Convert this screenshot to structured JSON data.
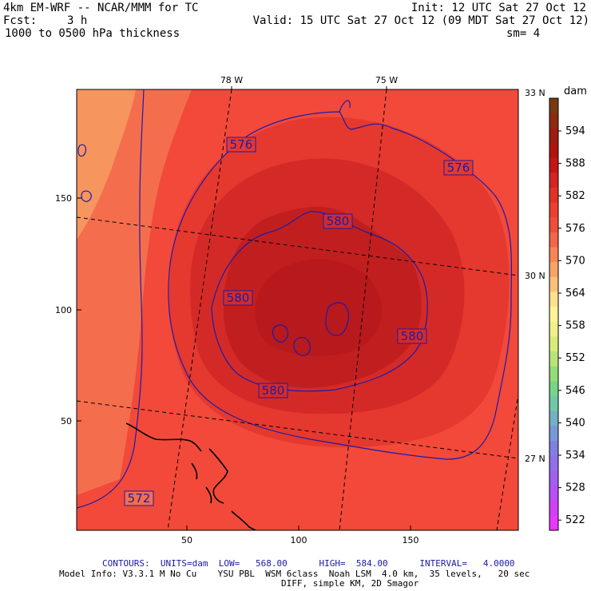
{
  "header": {
    "model": "4km EM-WRF -- NCAR/MMM for TC",
    "init": "Init: 12 UTC Sat 27 Oct 12",
    "fcst_label": "Fcst:",
    "fcst_value": "3 h",
    "valid": "Valid: 15 UTC Sat 27 Oct 12 (09 MDT Sat 27 Oct 12)",
    "field": "1000 to 0500 hPa thickness",
    "smoothing": "sm= 4"
  },
  "map": {
    "lon_labels": [
      "78 W",
      "75 W"
    ],
    "lat_labels": [
      "33 N",
      "30 N",
      "27 N"
    ],
    "y_axis_ticks": [
      "150",
      "100",
      "50"
    ],
    "x_axis_ticks": [
      "50",
      "100",
      "150"
    ],
    "contour_labels": [
      "576",
      "576",
      "580",
      "580",
      "580",
      "580",
      "572"
    ],
    "colors": {
      "fill_570": "#f2493a",
      "fill_574": "#e5382f",
      "fill_578": "#d42a27",
      "fill_580": "#c11f1f",
      "fill_566": "#f46e4e",
      "fill_562": "#f6955e",
      "contour": "#1c1ca8"
    }
  },
  "colorbar": {
    "unit": "dam",
    "labels": [
      "594",
      "588",
      "582",
      "576",
      "570",
      "564",
      "558",
      "552",
      "546",
      "540",
      "534",
      "528",
      "522"
    ],
    "colors": [
      "#7a3a10",
      "#8e2a10",
      "#9e1c12",
      "#b0140f",
      "#c41714",
      "#d42424",
      "#e33128",
      "#ee3e30",
      "#f04e3a",
      "#f36648",
      "#f68656",
      "#f8a468",
      "#fcc07a",
      "#fde08e",
      "#fff39a",
      "#f0f08a",
      "#d8ec78",
      "#b8e478",
      "#94dc78",
      "#78d488",
      "#70c8a8",
      "#74b0c4",
      "#7898d8",
      "#8080e0",
      "#9070e8",
      "#a060f0",
      "#b850f4",
      "#d040f8",
      "#e838fc"
    ]
  },
  "footer": {
    "contours": "CONTOURS:  UNITS=dam  LOW=   568.00      HIGH=  584.00      INTERVAL=   4.0000",
    "model_info": "Model Info: V3.3.1 M No Cu    YSU PBL  WSM 6class  Noah LSM  4.0 km,  35 levels,   20 sec",
    "model_info2": "DIFF, simple KM, 2D Smagor"
  }
}
